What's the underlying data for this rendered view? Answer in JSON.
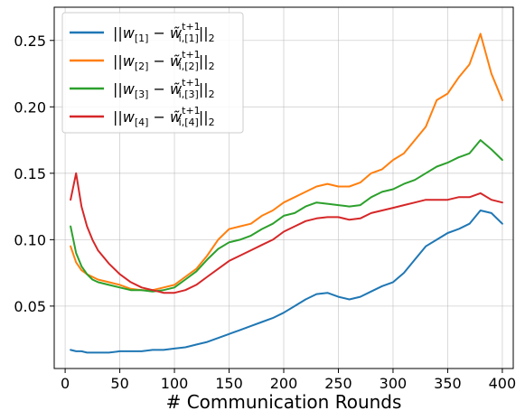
{
  "chart_data": {
    "type": "line",
    "title": "",
    "xlabel": "# Communication Rounds",
    "ylabel": "",
    "xlim": [
      -10,
      410
    ],
    "ylim": [
      0.003,
      0.275
    ],
    "xticks": [
      0,
      50,
      100,
      150,
      200,
      250,
      300,
      350,
      400
    ],
    "xtick_labels": [
      "0",
      "50",
      "100",
      "150",
      "200",
      "250",
      "300",
      "350",
      "400"
    ],
    "yticks": [
      0.05,
      0.1,
      0.15,
      0.2,
      0.25
    ],
    "ytick_labels": [
      "0.05",
      "0.10",
      "0.15",
      "0.20",
      "0.25"
    ],
    "grid": true,
    "legend_position": "top-left",
    "x": [
      5,
      10,
      15,
      20,
      25,
      30,
      40,
      50,
      60,
      70,
      80,
      90,
      100,
      110,
      120,
      130,
      140,
      150,
      160,
      170,
      180,
      190,
      200,
      210,
      220,
      230,
      240,
      250,
      260,
      270,
      280,
      290,
      300,
      310,
      320,
      330,
      340,
      350,
      360,
      370,
      380,
      390,
      400
    ],
    "series": [
      {
        "name_parts": {
          "w": "w",
          "wsub": "[1]",
          "t": "w̃",
          "tsup": "t+1",
          "tsub": "i,[1]"
        },
        "color": "#1f77b4",
        "values": [
          0.017,
          0.016,
          0.016,
          0.015,
          0.015,
          0.015,
          0.015,
          0.016,
          0.016,
          0.016,
          0.017,
          0.017,
          0.018,
          0.019,
          0.021,
          0.023,
          0.026,
          0.029,
          0.032,
          0.035,
          0.038,
          0.041,
          0.045,
          0.05,
          0.055,
          0.059,
          0.06,
          0.057,
          0.055,
          0.057,
          0.061,
          0.065,
          0.068,
          0.075,
          0.085,
          0.095,
          0.1,
          0.105,
          0.108,
          0.112,
          0.122,
          0.12,
          0.112
        ]
      },
      {
        "name_parts": {
          "w": "w",
          "wsub": "[2]",
          "t": "w̃",
          "tsup": "t+1",
          "tsub": "i,[2]"
        },
        "color": "#ff7f0e",
        "values": [
          0.095,
          0.083,
          0.077,
          0.074,
          0.072,
          0.07,
          0.068,
          0.066,
          0.063,
          0.062,
          0.062,
          0.064,
          0.066,
          0.072,
          0.078,
          0.088,
          0.1,
          0.108,
          0.11,
          0.112,
          0.118,
          0.122,
          0.128,
          0.132,
          0.136,
          0.14,
          0.142,
          0.14,
          0.14,
          0.143,
          0.15,
          0.153,
          0.16,
          0.165,
          0.175,
          0.185,
          0.205,
          0.21,
          0.222,
          0.232,
          0.255,
          0.225,
          0.205
        ]
      },
      {
        "name_parts": {
          "w": "w",
          "wsub": "[3]",
          "t": "w̃",
          "tsup": "t+1",
          "tsub": "i,[3]"
        },
        "color": "#2ca02c",
        "values": [
          0.11,
          0.09,
          0.08,
          0.074,
          0.07,
          0.068,
          0.066,
          0.064,
          0.062,
          0.062,
          0.061,
          0.062,
          0.064,
          0.07,
          0.076,
          0.085,
          0.093,
          0.098,
          0.1,
          0.103,
          0.108,
          0.112,
          0.118,
          0.12,
          0.125,
          0.128,
          0.127,
          0.126,
          0.125,
          0.126,
          0.132,
          0.136,
          0.138,
          0.142,
          0.145,
          0.15,
          0.155,
          0.158,
          0.162,
          0.165,
          0.175,
          0.168,
          0.16
        ]
      },
      {
        "name_parts": {
          "w": "w",
          "wsub": "[4]",
          "t": "w̃",
          "tsup": "t+1",
          "tsub": "i,[4]"
        },
        "color": "#d62728",
        "values": [
          0.13,
          0.15,
          0.125,
          0.11,
          0.1,
          0.092,
          0.082,
          0.074,
          0.068,
          0.064,
          0.062,
          0.06,
          0.06,
          0.062,
          0.066,
          0.072,
          0.078,
          0.084,
          0.088,
          0.092,
          0.096,
          0.1,
          0.106,
          0.11,
          0.114,
          0.116,
          0.117,
          0.117,
          0.115,
          0.116,
          0.12,
          0.122,
          0.124,
          0.126,
          0.128,
          0.13,
          0.13,
          0.13,
          0.132,
          0.132,
          0.135,
          0.13,
          0.128
        ]
      }
    ]
  }
}
